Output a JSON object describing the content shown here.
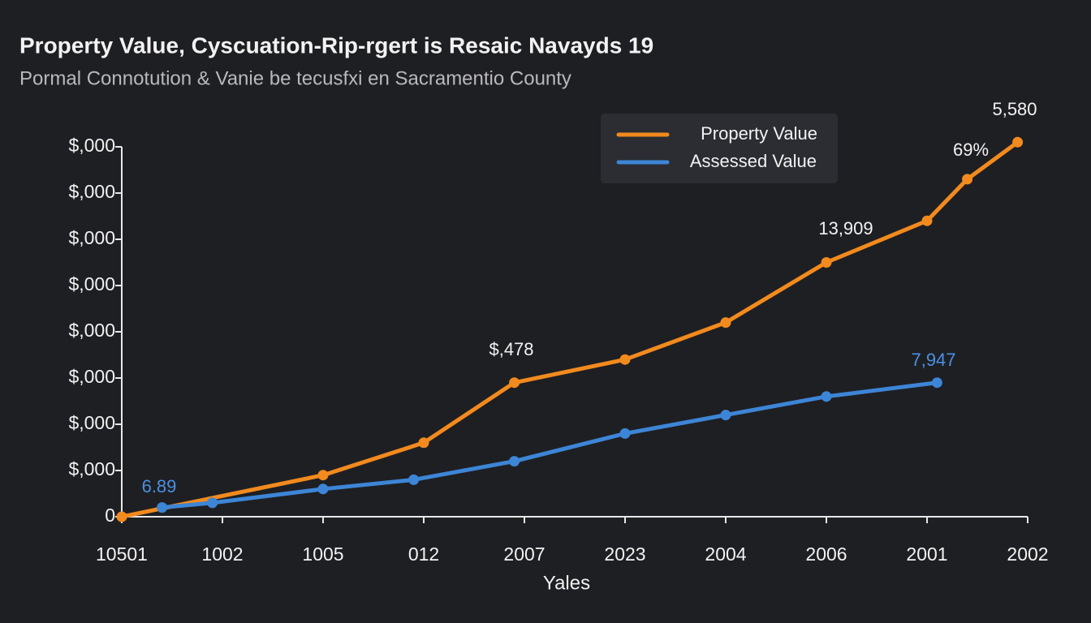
{
  "chart_data": {
    "type": "line",
    "title": "Property Value, Cyscuation-Rip-rgert is Resaic Navayds 19",
    "subtitle": "Pormal Connotution & Vanie be tecusfxi en Sacramentio County",
    "x_label": "Yales",
    "xlim": [
      0,
      9
    ],
    "xticks": [
      {
        "value": 0,
        "label": "10501"
      },
      {
        "value": 1,
        "label": "1002"
      },
      {
        "value": 2,
        "label": "1005"
      },
      {
        "value": 3,
        "label": "012"
      },
      {
        "value": 4,
        "label": "2007"
      },
      {
        "value": 5,
        "label": "2023"
      },
      {
        "value": 6,
        "label": "2004"
      },
      {
        "value": 7,
        "label": "2006"
      },
      {
        "value": 8,
        "label": "2001"
      },
      {
        "value": 9,
        "label": "2002"
      }
    ],
    "ylim": [
      0,
      8.2
    ],
    "yticks": [
      0,
      {
        "value": 1,
        "label": "$,000"
      },
      {
        "value": 2,
        "label": "$,000"
      },
      {
        "value": 3,
        "label": "$,000"
      },
      {
        "value": 4,
        "label": "$,000"
      },
      {
        "value": 5,
        "label": "$,000"
      },
      {
        "value": 6,
        "label": "$,000"
      },
      {
        "value": 7,
        "label": "$,000"
      },
      {
        "value": 8,
        "label": "$,000"
      }
    ],
    "grid": false,
    "legend": "upper right",
    "series": [
      {
        "name": "Property Value",
        "color": "#f28a1e",
        "x": [
          0,
          2,
          3,
          3.9,
          5,
          6,
          7,
          8,
          8.4,
          8.9
        ],
        "values": [
          0,
          0.9,
          1.6,
          2.9,
          3.4,
          4.2,
          5.5,
          6.4,
          7.3,
          8.1
        ]
      },
      {
        "name": "Assessed Value",
        "color": "#3d85d6",
        "x": [
          0.4,
          0.9,
          2,
          2.9,
          3.9,
          5,
          6,
          7,
          8.1
        ],
        "values": [
          0.2,
          0.3,
          0.6,
          0.8,
          1.2,
          1.8,
          2.2,
          2.6,
          2.9
        ]
      }
    ],
    "annotations": [
      "5,580",
      "69%",
      "13,909",
      "$,478",
      "7,947",
      "6.89"
    ]
  }
}
